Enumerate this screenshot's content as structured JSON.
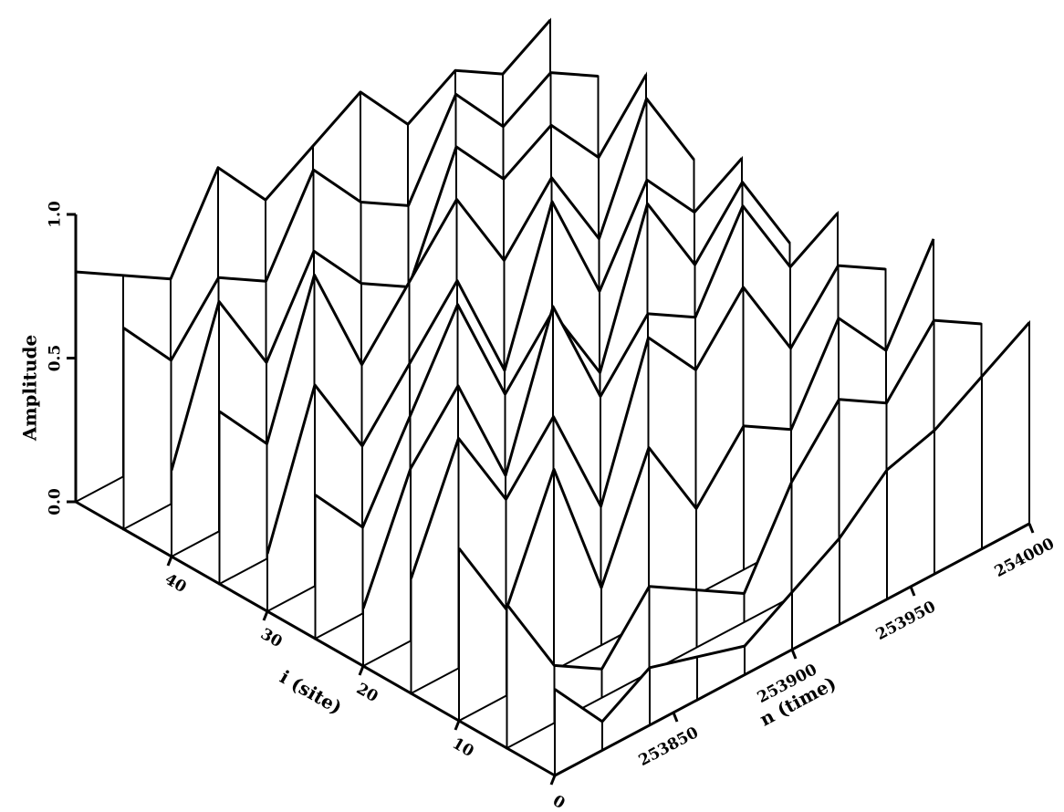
{
  "chart_data": {
    "type": "surface",
    "xlabel": "n (time)",
    "ylabel": "i (site)",
    "zlabel": "Amplitude",
    "x": [
      253800,
      253820,
      253840,
      253860,
      253880,
      253900,
      253920,
      253940,
      253960,
      253980,
      254000
    ],
    "y": [
      0,
      5,
      10,
      15,
      20,
      25,
      30,
      35,
      40,
      45,
      50
    ],
    "z": [
      [
        0.3,
        0.1,
        0.2,
        0.15,
        0.1,
        0.2,
        0.3,
        0.45,
        0.5,
        0.6,
        0.7
      ],
      [
        0.5,
        0.2,
        0.1,
        0.3,
        0.2,
        0.1,
        0.4,
        0.6,
        0.5,
        0.7,
        0.6
      ],
      [
        0.6,
        0.3,
        0.7,
        0.2,
        0.6,
        0.3,
        0.5,
        0.4,
        0.7,
        0.5,
        0.8
      ],
      [
        0.4,
        0.8,
        0.5,
        0.7,
        0.3,
        0.8,
        0.6,
        0.8,
        0.5,
        0.7,
        0.6
      ],
      [
        0.2,
        0.6,
        0.8,
        0.4,
        0.9,
        0.5,
        0.7,
        0.6,
        0.9,
        0.6,
        0.7
      ],
      [
        0.5,
        0.3,
        0.6,
        0.9,
        0.5,
        0.7,
        0.4,
        0.9,
        0.6,
        0.8,
        0.5
      ],
      [
        0.2,
        0.7,
        0.4,
        0.6,
        0.8,
        0.4,
        0.9,
        0.5,
        0.8,
        0.6,
        0.7
      ],
      [
        0.6,
        0.4,
        0.9,
        0.5,
        0.7,
        0.9,
        0.6,
        0.8,
        0.5,
        0.9,
        0.6
      ],
      [
        0.3,
        0.8,
        0.5,
        0.8,
        0.6,
        0.5,
        0.9,
        0.7,
        0.8,
        0.6,
        0.8
      ],
      [
        0.7,
        0.5,
        0.7,
        0.6,
        0.9,
        0.7,
        0.6,
        0.9,
        0.7,
        0.8,
        0.7
      ],
      [
        0.8,
        0.7,
        0.6,
        0.9,
        0.7,
        0.8,
        0.9,
        0.7,
        0.8,
        0.7,
        0.8
      ]
    ],
    "xlim": [
      253800,
      254000
    ],
    "xticks": [
      253850,
      253900,
      253950,
      254000
    ],
    "ylim": [
      0,
      50
    ],
    "yticks": [
      0,
      10,
      20,
      30,
      40
    ],
    "zlim": [
      0,
      1
    ],
    "zticks": [
      {
        "value": 0,
        "label": "0.0"
      },
      {
        "value": 0.5,
        "label": "0.5"
      },
      {
        "value": 1,
        "label": "1.0"
      }
    ],
    "color": "#000000"
  }
}
